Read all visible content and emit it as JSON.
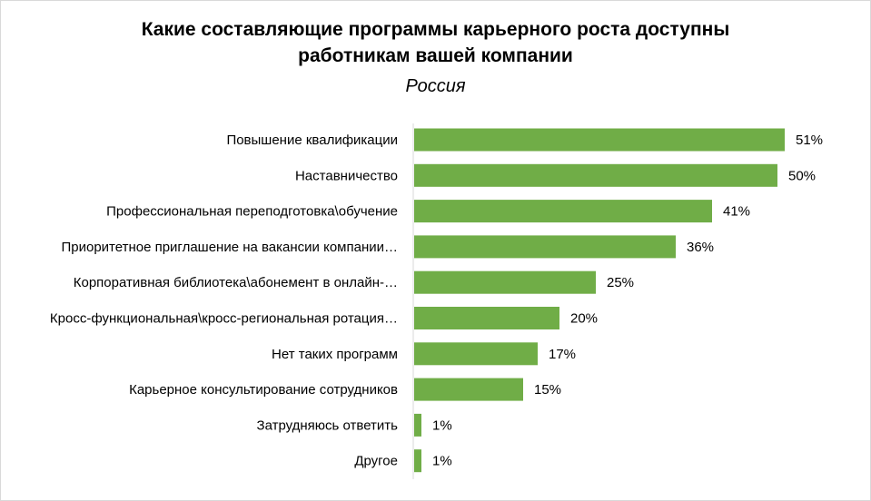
{
  "chart_data": {
    "type": "bar",
    "orientation": "horizontal",
    "title_lines": [
      "Какие составляющие программы карьерного роста доступны",
      "работникам вашей компании"
    ],
    "subtitle": "Россия",
    "categories": [
      "Повышение квалификации",
      "Наставничество",
      "Профессиональная переподготовка\\обучение",
      "Приоритетное приглашение на вакансии компании…",
      "Корпоративная библиотека\\абонемент в онлайн-…",
      "Кросс-функциональная\\кросс-региональная ротация…",
      "Нет таких программ",
      "Карьерное консультирование сотрудников",
      "Затрудняюсь ответить",
      "Другое"
    ],
    "values": [
      51,
      50,
      41,
      36,
      25,
      20,
      17,
      15,
      1,
      1
    ],
    "value_labels": [
      "51%",
      "50%",
      "41%",
      "36%",
      "25%",
      "20%",
      "17%",
      "15%",
      "1%",
      "1%"
    ],
    "unit": "%",
    "bar_color": "#70ad47",
    "axis_color": "#d9d9d9",
    "grid": false,
    "legend": "none"
  }
}
